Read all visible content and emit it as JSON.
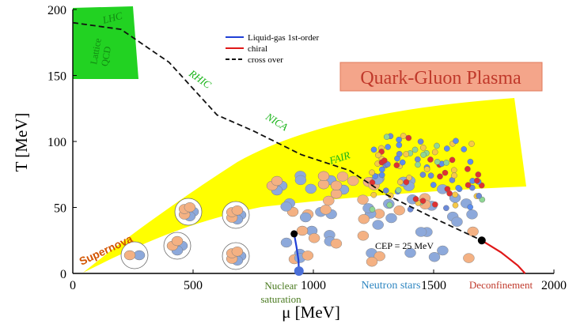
{
  "chart_data": {
    "type": "phase-diagram",
    "xlabel": "μ [MeV]",
    "ylabel": "T [MeV]",
    "xlim": [
      0,
      2000
    ],
    "ylim": [
      0,
      200
    ],
    "x_ticks": [
      "0",
      "500",
      "1000",
      "1500",
      "2000"
    ],
    "y_ticks": [
      "0",
      "50",
      "100",
      "150",
      "200"
    ],
    "legend": [
      {
        "name": "Liquid-gas 1st-order",
        "color": "#1f3fd6",
        "style": "solid"
      },
      {
        "name": "chiral",
        "color": "#e01818",
        "style": "solid"
      },
      {
        "name": "cross over",
        "color": "#111111",
        "style": "dashed"
      }
    ],
    "regions": [
      {
        "name": "Quark-Gluon Plasma",
        "color": "#c0392b",
        "box_fill": "#f4a58a"
      },
      {
        "name": "Supernova",
        "color": "#d35400"
      },
      {
        "name": "Lattice QCD",
        "color": "#17b317"
      }
    ],
    "experiments": [
      "LHC",
      "RHIC",
      "NICA",
      "FAIR"
    ],
    "critical_point": {
      "label": "CEP = 25 MeV",
      "mu": 1700,
      "T": 25
    },
    "nuclear_point": {
      "mu": 940,
      "T": 0
    },
    "crossover_curve": [
      [
        0,
        190
      ],
      [
        200,
        185
      ],
      [
        400,
        160
      ],
      [
        600,
        120
      ],
      [
        750,
        108
      ],
      [
        950,
        90
      ],
      [
        1150,
        78
      ],
      [
        1300,
        60
      ],
      [
        1500,
        42
      ],
      [
        1700,
        25
      ]
    ],
    "first_order_chiral_points": [
      [
        1700,
        25
      ],
      [
        1780,
        16
      ],
      [
        1850,
        6
      ],
      [
        1880,
        0
      ]
    ],
    "liquid_gas_points": [
      [
        920,
        30
      ],
      [
        930,
        20
      ],
      [
        938,
        10
      ],
      [
        940,
        0
      ]
    ],
    "bottom_labels": [
      {
        "text": "Nuclear",
        "color": "#4a7a1f"
      },
      {
        "text": "saturation",
        "color": "#4a7a1f"
      },
      {
        "text": "Neutron stars",
        "color": "#2e86c1"
      },
      {
        "text": "Deconfinement",
        "color": "#c0392b"
      }
    ]
  }
}
